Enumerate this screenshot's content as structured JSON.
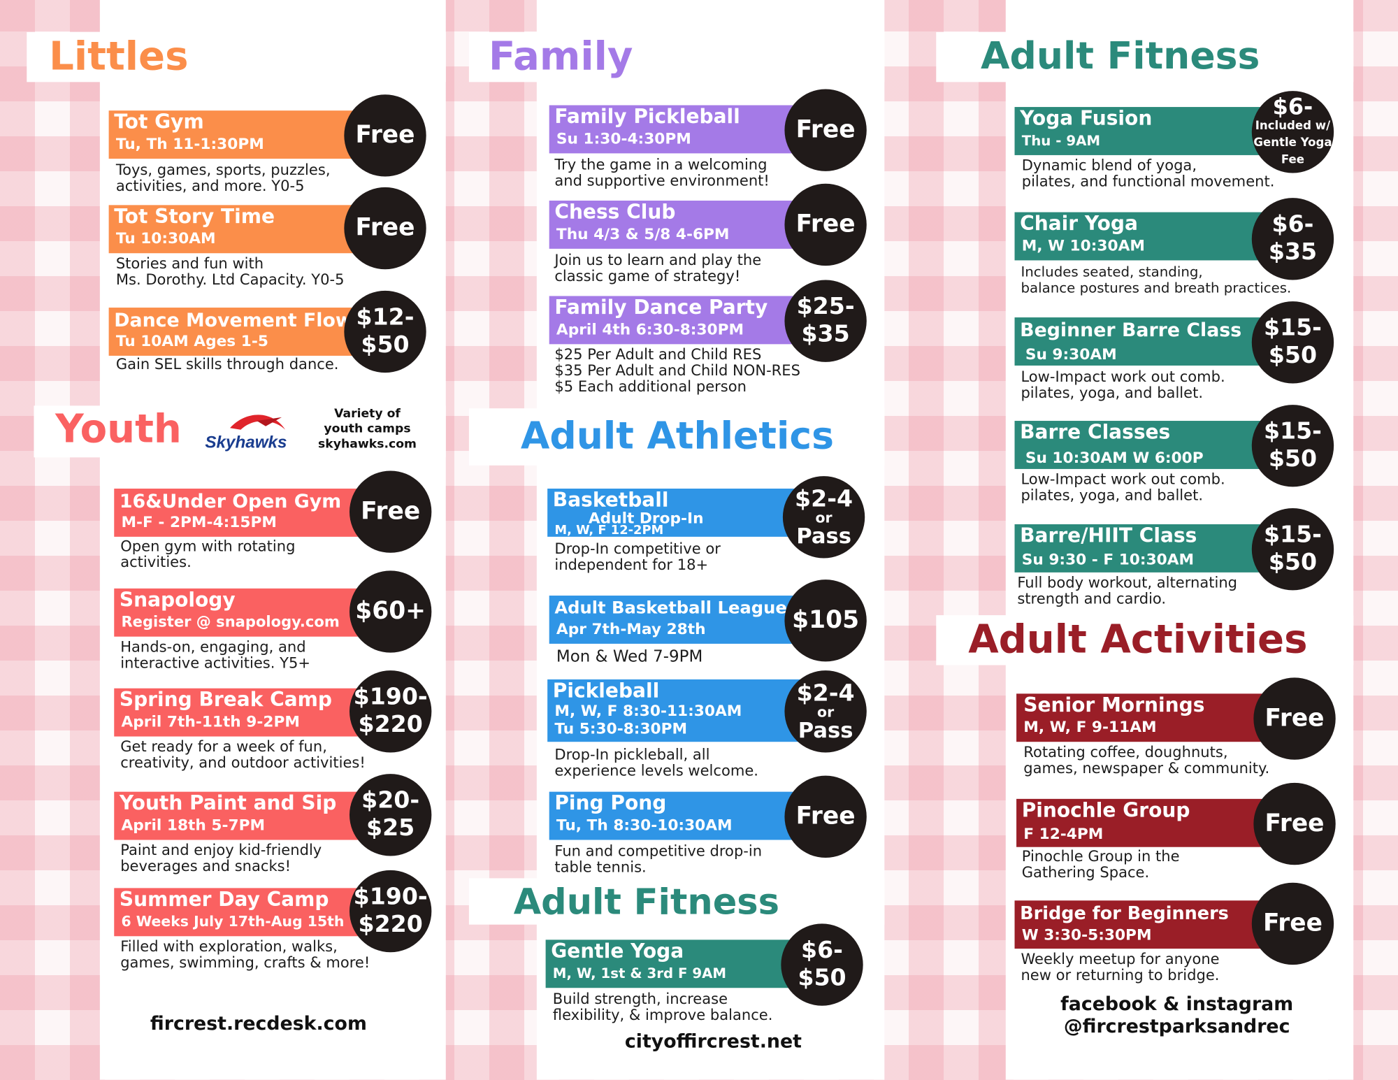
{
  "colors": {
    "littles": "#fb8e4a",
    "family": "#a47ae7",
    "youth": "#fa6161",
    "adult_athletics": "#2f95e6",
    "adult_fitness": "#2b8a7b",
    "adult_activities": "#9a1e27",
    "price_circle": "#201a19"
  },
  "littles": {
    "title": "Littles",
    "items": [
      {
        "name": "Tot Gym",
        "schedule": "Tu, Th 11-1:30PM",
        "price": "Free",
        "description": "Toys, games, sports, puzzles,\nactivities, and more. Y0-5"
      },
      {
        "name": "Tot Story Time",
        "schedule": "Tu 10:30AM",
        "price": "Free",
        "description": "Stories and fun with\nMs. Dorothy. Ltd Capacity. Y0-5"
      },
      {
        "name": "Dance Movement Flow",
        "schedule": "Tu 10AM Ages 1-5",
        "price": "$12-\n$50",
        "description": "Gain SEL skills through dance."
      }
    ]
  },
  "youth": {
    "title": "Youth",
    "partner_logo": "Skyhawks",
    "partner_note": "Variety of\nyouth camps\nskyhawks.com",
    "items": [
      {
        "name": "16&Under Open Gym",
        "schedule": "M-F - 2PM-4:15PM",
        "price": "Free",
        "description": "Open gym with rotating\nactivities."
      },
      {
        "name": "Snapology",
        "schedule": "Register @ snapology.com",
        "price": "$60+",
        "description": "Hands-on, engaging, and\ninteractive activities. Y5+"
      },
      {
        "name": "Spring Break Camp",
        "schedule": "April 7th-11th 9-2PM",
        "price": "$190-\n$220",
        "description": "Get ready for a week of fun,\ncreativity, and outdoor activities!"
      },
      {
        "name": "Youth Paint and Sip",
        "schedule": "April 18th 5-7PM",
        "price": "$20-\n$25",
        "description": "Paint and enjoy kid-friendly\nbeverages and snacks!"
      },
      {
        "name": "Summer Day Camp",
        "schedule": "6 Weeks July 17th-Aug 15th",
        "price": "$190-\n$220",
        "description": "Filled with exploration, walks,\ngames, swimming, crafts & more!"
      }
    ],
    "footer": "fircrest.recdesk.com"
  },
  "family": {
    "title": "Family",
    "items": [
      {
        "name": "Family Pickleball",
        "schedule": "Su 1:30-4:30PM",
        "price": "Free",
        "description": "Try the game in a welcoming\nand supportive environment!"
      },
      {
        "name": "Chess Club",
        "schedule": "Thu 4/3 & 5/8 4-6PM",
        "price": "Free",
        "description": "Join us to learn and play the\nclassic game of strategy!"
      },
      {
        "name": "Family Dance Party",
        "schedule": "April 4th 6:30-8:30PM",
        "price": "$25-\n$35",
        "description": "$25 Per Adult and Child RES\n$35 Per Adult and Child NON-RES\n$5 Each additional person"
      }
    ]
  },
  "adult_athletics": {
    "title": "Adult Athletics",
    "items": [
      {
        "name": "Basketball",
        "subtitle": "Adult Drop-In",
        "schedule": "M, W, F 12-2PM",
        "price": "$2-4\nor\nPass",
        "description": "Drop-In competitive or\nindependent for 18+"
      },
      {
        "name": "Adult Basketball League",
        "schedule": "Apr 7th-May 28th",
        "price": "$105",
        "description": "Mon & Wed 7-9PM"
      },
      {
        "name": "Pickleball",
        "schedule": "M, W, F 8:30-11:30AM",
        "schedule2": "Tu 5:30-8:30PM",
        "price": "$2-4\nor\nPass",
        "description": "Drop-In pickleball, all\nexperience levels welcome."
      },
      {
        "name": "Ping Pong",
        "schedule": "Tu, Th 8:30-10:30AM",
        "price": "Free",
        "description": "Fun and competitive drop-in\ntable tennis."
      }
    ]
  },
  "adult_fitness_middle": {
    "title": "Adult Fitness",
    "items": [
      {
        "name": "Gentle Yoga",
        "schedule": "M, W, 1st & 3rd F 9AM",
        "price": "$6-\n$50",
        "description": "Build strength, increase\nflexibility, & improve balance."
      }
    ],
    "footer": "cityoffircrest.net"
  },
  "adult_fitness": {
    "title": "Adult Fitness",
    "items": [
      {
        "name": "Yoga Fusion",
        "schedule": "Thu - 9AM",
        "price_main": "$6-",
        "price_note": "Included w/\nGentle Yoga\nFee",
        "description": "Dynamic blend of yoga,\npilates, and functional movement."
      },
      {
        "name": "Chair Yoga",
        "schedule": "M, W 10:30AM",
        "price": "$6-\n$35",
        "description": "Includes seated, standing,\nbalance postures and breath practices."
      },
      {
        "name": "Beginner Barre Class",
        "schedule": "Su 9:30AM",
        "price": "$15-\n$50",
        "description": "Low-Impact work out comb.\npilates, yoga, and ballet."
      },
      {
        "name": "Barre Classes",
        "schedule": "Su 10:30AM  W 6:00P",
        "price": "$15-\n$50",
        "description": "Low-Impact work out comb.\npilates, yoga, and ballet."
      },
      {
        "name": "Barre/HIIT Class",
        "schedule": "Su 9:30 - F 10:30AM",
        "price": "$15-\n$50",
        "description": "Full body workout, alternating\nstrength and cardio."
      }
    ]
  },
  "adult_activities": {
    "title": "Adult Activities",
    "items": [
      {
        "name": "Senior Mornings",
        "schedule": "M, W, F 9-11AM",
        "price": "Free",
        "description": "Rotating coffee, doughnuts,\ngames, newspaper & community."
      },
      {
        "name": "Pinochle Group",
        "schedule": "F  12-4PM",
        "price": "Free",
        "description": "Pinochle Group in the\nGathering Space."
      },
      {
        "name": "Bridge for Beginners",
        "schedule": "W 3:30-5:30PM",
        "price": "Free",
        "description": "Weekly meetup for anyone\nnew or returning to bridge."
      }
    ],
    "footer": "facebook & instagram\n@fircrestparksandrec"
  }
}
